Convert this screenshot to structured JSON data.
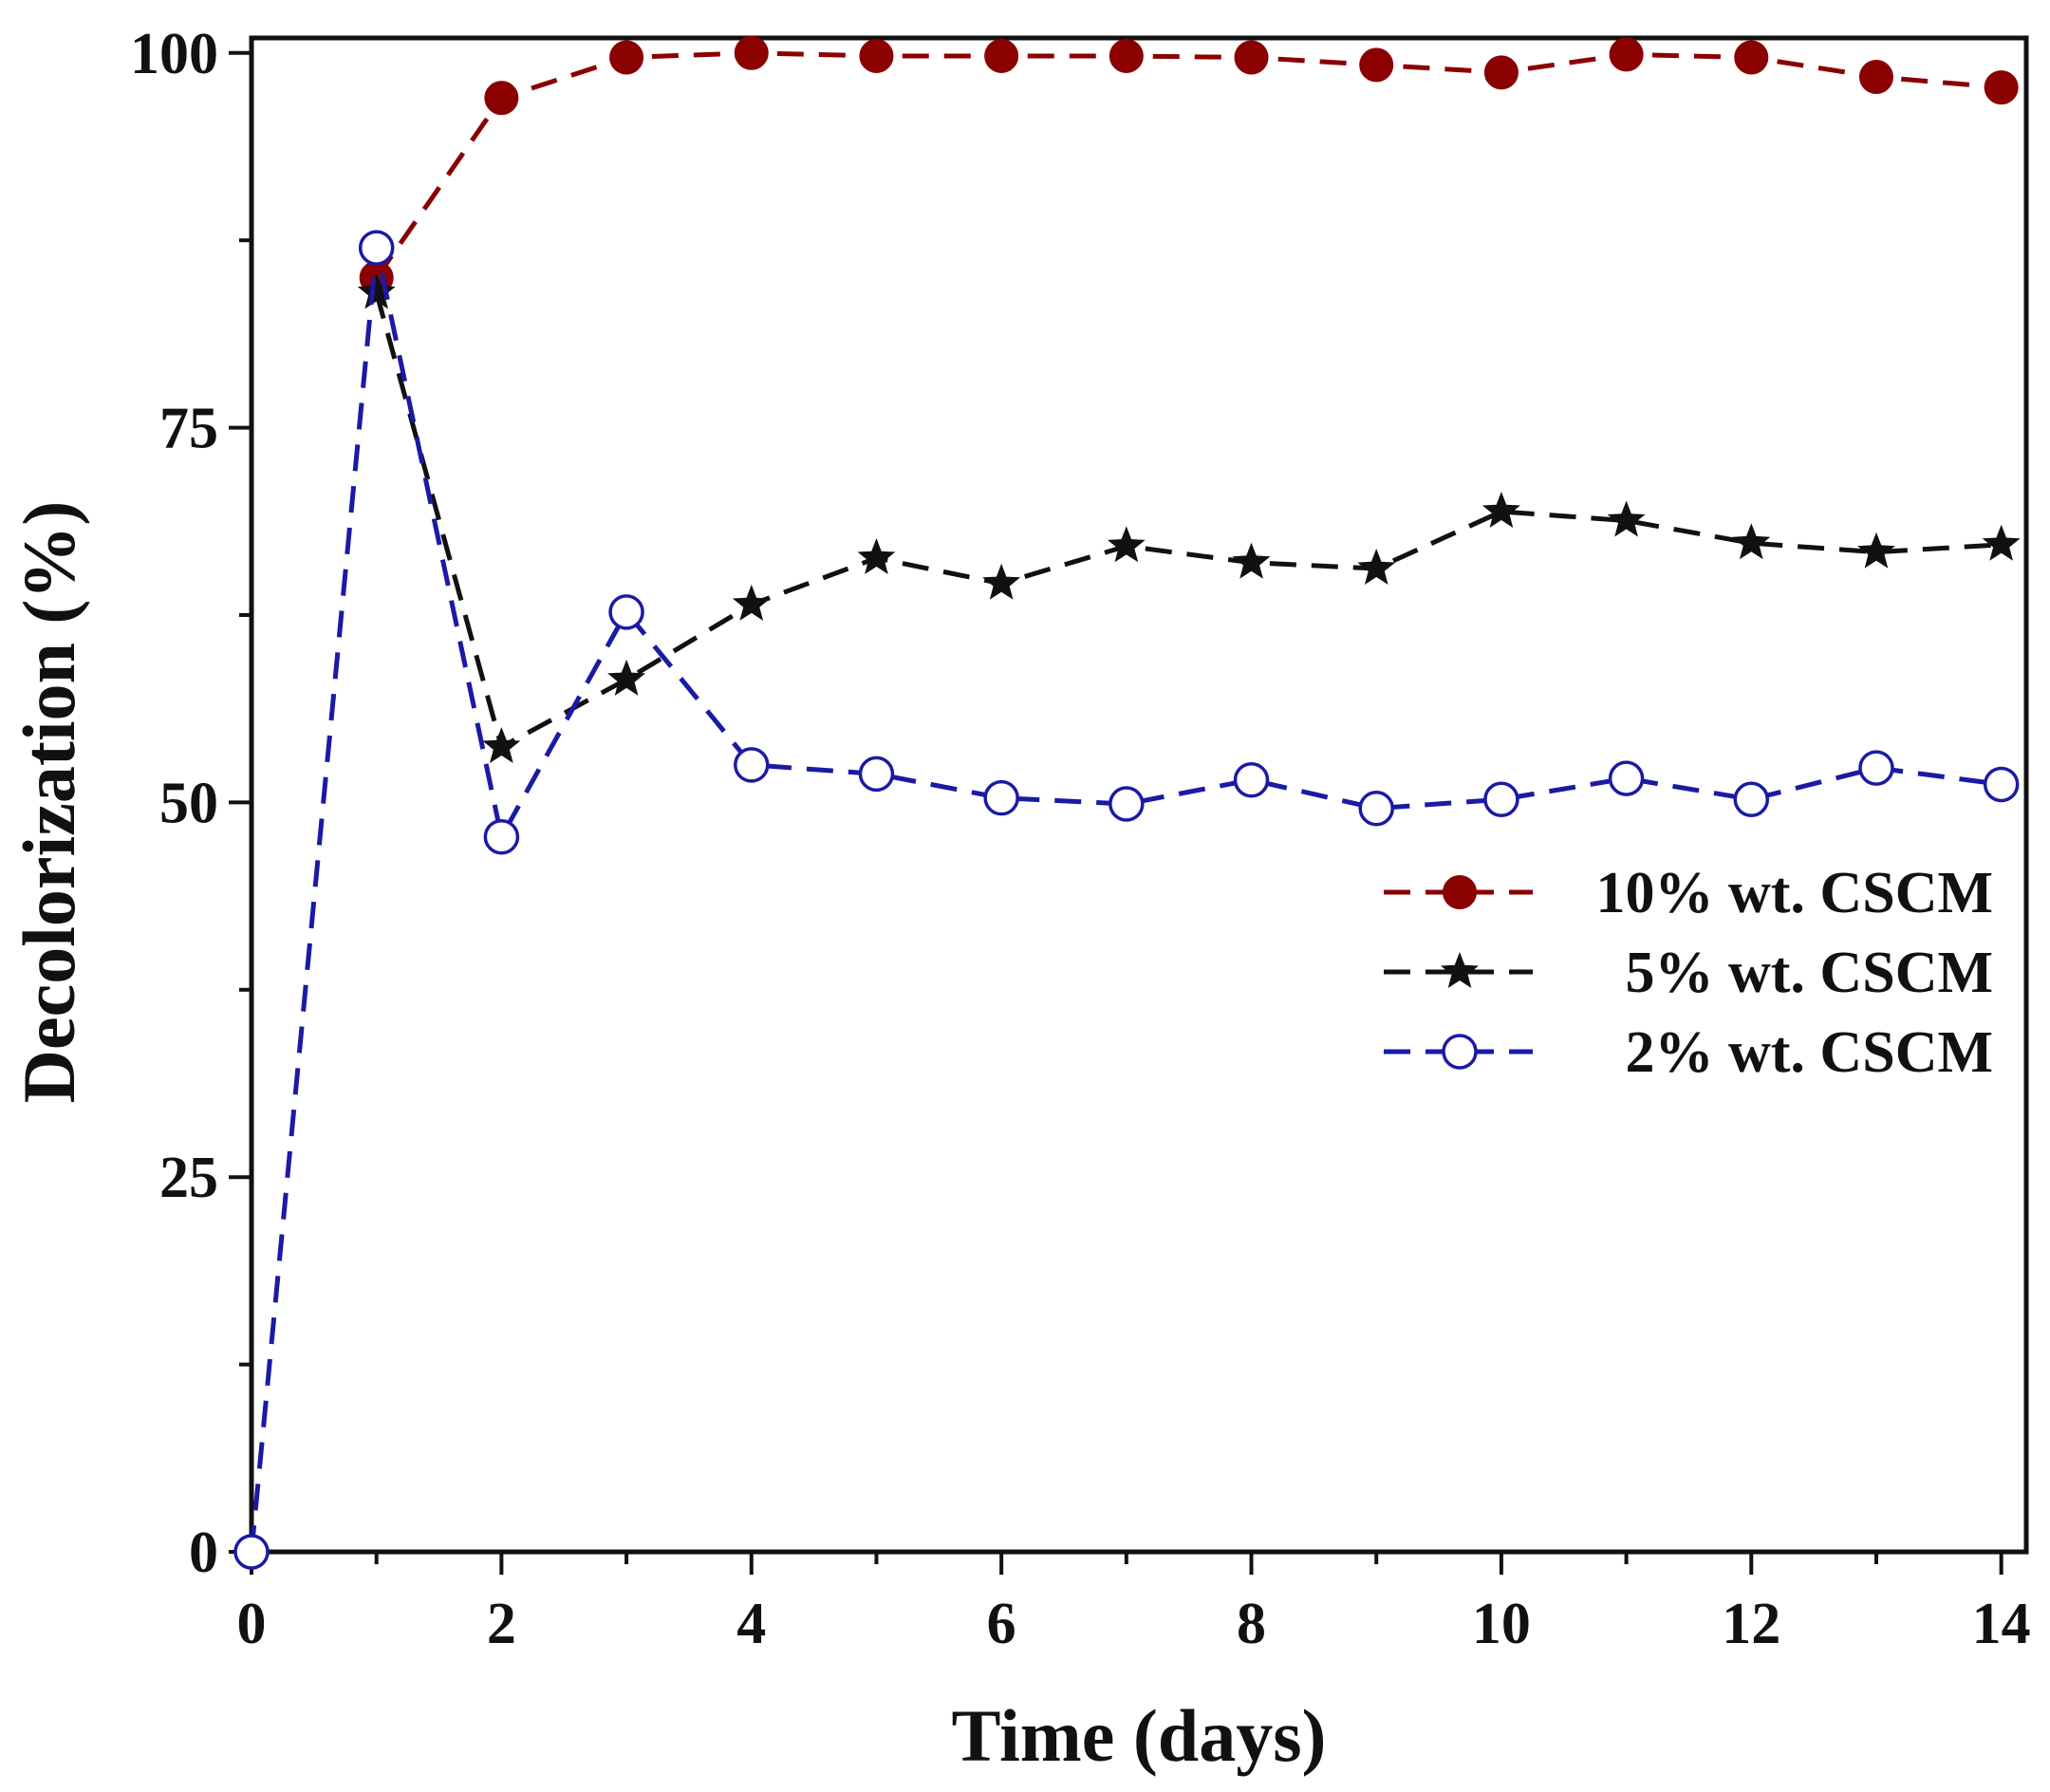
{
  "chart_data": {
    "type": "line",
    "title": "",
    "xlabel": "Time (days)",
    "ylabel": "Decolorization (%)",
    "xlim": [
      0,
      14.2
    ],
    "ylim": [
      0,
      101
    ],
    "x_ticks": [
      0,
      2,
      4,
      6,
      8,
      10,
      12,
      14
    ],
    "y_ticks": [
      0,
      25,
      50,
      75,
      100
    ],
    "grid": false,
    "legend_position": "center-right",
    "series": [
      {
        "name": "10% wt. CSCM",
        "color": "#8b0000",
        "marker": "filled-circle",
        "x": [
          1,
          2,
          3,
          4,
          5,
          6,
          7,
          8,
          9,
          10,
          11,
          12,
          13,
          14
        ],
        "y": [
          85,
          97,
          99.7,
          100,
          99.8,
          99.8,
          99.8,
          99.7,
          99.2,
          98.7,
          99.9,
          99.7,
          98.4,
          97.7
        ]
      },
      {
        "name": "5% wt. CSCM",
        "color": "#111111",
        "marker": "star",
        "x": [
          1,
          2,
          3,
          4,
          5,
          6,
          7,
          8,
          9,
          10,
          11,
          12,
          13,
          14
        ],
        "y": [
          84,
          53.7,
          58.2,
          63.2,
          66.3,
          64.6,
          67.1,
          66,
          65.6,
          69.4,
          68.8,
          67.3,
          66.7,
          67.2
        ]
      },
      {
        "name": "2% wt. CSCM",
        "color": "#1a1aa6",
        "marker": "open-circle",
        "x": [
          0,
          1,
          2,
          3,
          4,
          5,
          6,
          7,
          8,
          9,
          10,
          11,
          12,
          13,
          14
        ],
        "y": [
          0,
          87,
          47.7,
          62.7,
          52.5,
          51.9,
          50.3,
          49.9,
          51.5,
          49.6,
          50.2,
          51.6,
          50.2,
          52.3,
          51.2
        ]
      }
    ]
  }
}
